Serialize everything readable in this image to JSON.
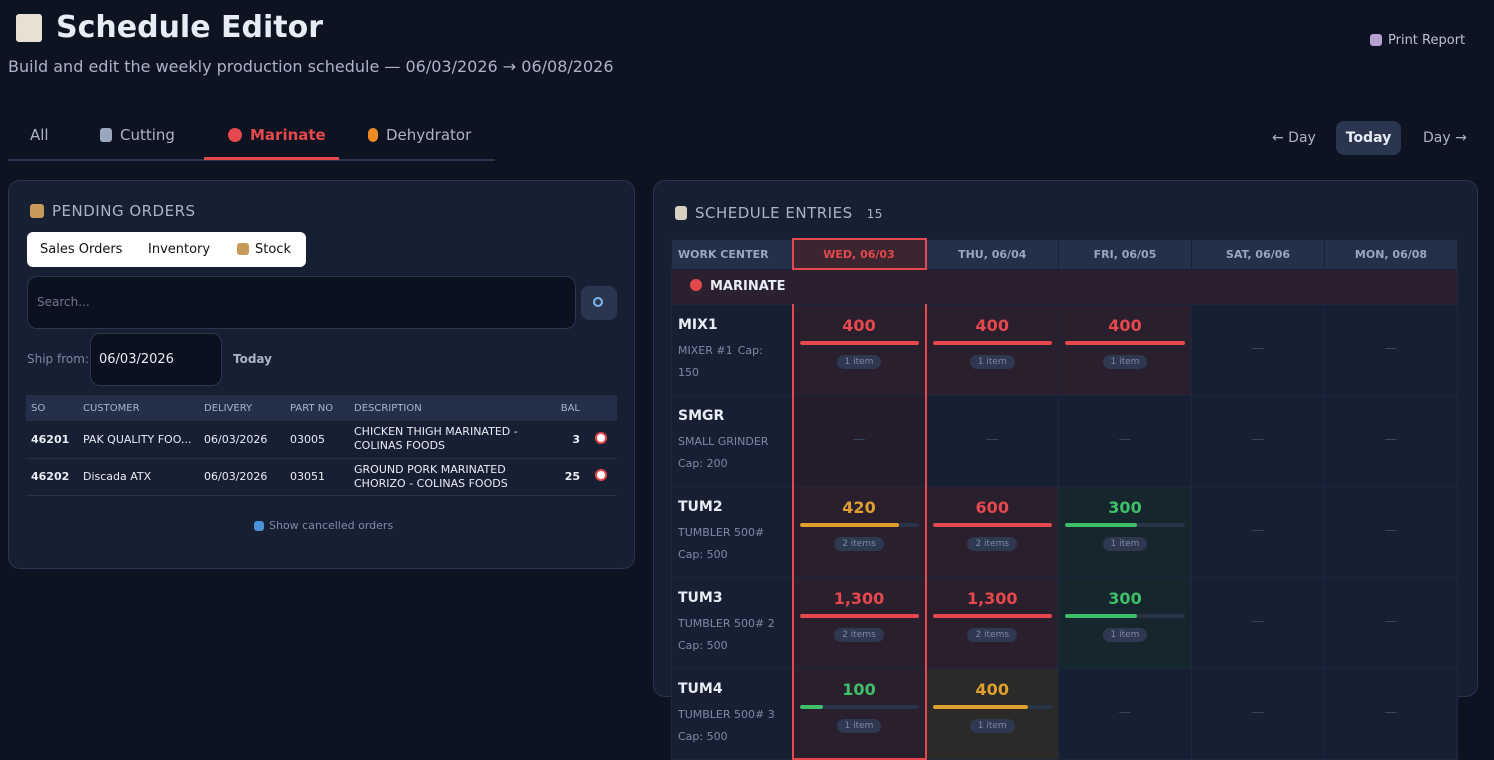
{
  "header": {
    "title": "Schedule Editor",
    "subtitle": "Build and edit the weekly production schedule — 06/03/2026 → 06/08/2026",
    "print": "Print Report"
  },
  "tabs": [
    "All",
    "Cutting",
    "Marinate",
    "Dehydrator"
  ],
  "nav": [
    "← Day",
    "Today",
    "Day →"
  ],
  "pending": {
    "title": "PENDING ORDERS",
    "subtabs": [
      "Sales Orders",
      "Inventory",
      "Stock"
    ],
    "search_placeholder": "Search...",
    "ship_from": "Ship from:",
    "ship_date": "06/03/2026",
    "today": "Today",
    "columns": [
      "SO",
      "CUSTOMER",
      "DELIVERY",
      "PART NO",
      "DESCRIPTION",
      "BAL"
    ],
    "rows": [
      [
        "46201",
        "PAK QUALITY FOO...",
        "06/03/2026",
        "03005",
        "CHICKEN THIGH MARINATED - COLINAS FOODS",
        "3"
      ],
      [
        "46202",
        "Discada ATX",
        "06/03/2026",
        "03051",
        "GROUND PORK MARINATED CHORIZO - COLINAS FOODS",
        "25"
      ]
    ],
    "show_cancelled": "Show cancelled orders"
  },
  "schedule": {
    "title": "SCHEDULE ENTRIES",
    "count": "15",
    "columns": [
      "WORK CENTER",
      "WED, 06/03",
      "THU, 06/04",
      "FRI, 06/05",
      "SAT, 06/06",
      "MON, 06/08"
    ],
    "group": "MARINATE",
    "empty": "—",
    "rows": [
      {
        "name": "MIX1",
        "desc": "MIXER #1",
        "cap": {
          "value": 150,
          "label": "Cap: 150"
        },
        "cells": [
          {
            "value": 400,
            "items": "1 item"
          },
          {
            "value": 400,
            "items": "1 item"
          },
          {
            "value": 400,
            "items": "1 item"
          },
          null,
          null
        ]
      },
      {
        "name": "SMGR",
        "desc": "SMALL GRINDER",
        "cap": {
          "value": 200,
          "label": "Cap: 200"
        },
        "cells": [
          null,
          null,
          null,
          null,
          null
        ]
      },
      {
        "name": "TUM2",
        "desc": "TUMBLER 500#",
        "cap": {
          "value": 500,
          "label": "Cap: 500"
        },
        "cells": [
          {
            "value": 420,
            "items": "2 items"
          },
          {
            "value": 600,
            "items": "2 items"
          },
          {
            "value": 300,
            "items": "1 item"
          },
          null,
          null
        ]
      },
      {
        "name": "TUM3",
        "desc": "TUMBLER 500# 2",
        "cap": {
          "value": 500,
          "label": "Cap: 500"
        },
        "cells": [
          {
            "value": 1300,
            "label": "1,300",
            "items": "2 items"
          },
          {
            "value": 1300,
            "label": "1,300",
            "items": "2 items"
          },
          {
            "value": 300,
            "items": "1 item"
          },
          null,
          null
        ]
      },
      {
        "name": "TUM4",
        "desc": "TUMBLER 500# 3",
        "cap": {
          "value": 500,
          "label": "Cap: 500"
        },
        "cells": [
          {
            "value": 100,
            "items": "1 item"
          },
          {
            "value": 400,
            "items": "1 item"
          },
          null,
          null,
          null
        ]
      }
    ]
  }
}
